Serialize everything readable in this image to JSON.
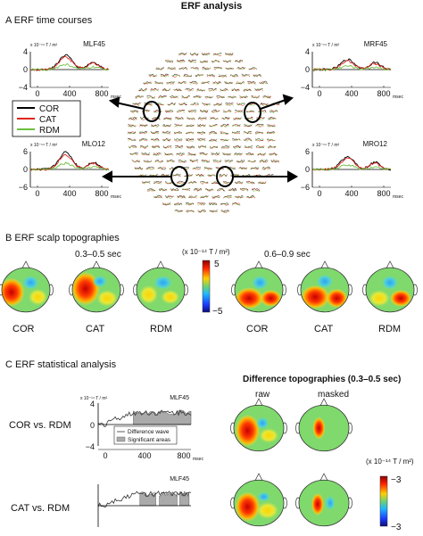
{
  "figure": {
    "title": "ERF analysis",
    "panels": {
      "A": {
        "label": "A ERF time courses",
        "unit": "x 10⁻¹⁴ T / m²",
        "xunit": "msec",
        "channels": {
          "MLF45": {
            "name": "MLF45",
            "yticks": [
              "4",
              "0",
              "−4"
            ],
            "xticks": [
              "0",
              "400",
              "800"
            ]
          },
          "MRF45": {
            "name": "MRF45",
            "yticks": [
              "4",
              "0",
              "−4"
            ],
            "xticks": [
              "0",
              "400",
              "800"
            ]
          },
          "MLO12": {
            "name": "MLO12",
            "yticks": [
              "6",
              "0",
              "−6"
            ],
            "xticks": [
              "0",
              "400",
              "800"
            ]
          },
          "MRO12": {
            "name": "MRO12",
            "yticks": [
              "6",
              "0",
              "−6"
            ],
            "xticks": [
              "0",
              "400",
              "800"
            ]
          }
        },
        "legend": [
          {
            "label": "COR",
            "color": "#000000"
          },
          {
            "label": "CAT",
            "color": "#e0241c"
          },
          {
            "label": "RDM",
            "color": "#6fbf3f"
          }
        ]
      },
      "B": {
        "label": "B ERF scalp topographies",
        "window1": "0.3–0.5 sec",
        "window2": "0.6–0.9 sec",
        "colorbar_unit": "(x 10⁻¹⁴ T / m²)",
        "colorbar_max": "5",
        "colorbar_min": "−5",
        "conditions": [
          "COR",
          "CAT",
          "RDM",
          "COR",
          "CAT",
          "RDM"
        ]
      },
      "C": {
        "label": "C ERF statistical analysis",
        "row1_label": "COR vs. RDM",
        "row2_label": "CAT vs. RDM",
        "plot_unit": "x 10⁻¹⁴ T / m²",
        "channel": "MLF45",
        "yticks": [
          "4",
          "0",
          "−4"
        ],
        "xticks": [
          "0",
          "400",
          "800"
        ],
        "xunit": "msec",
        "legend": [
          "Difference wave",
          "Significant areas"
        ],
        "diff_title": "Difference topographies (0.3–0.5 sec)",
        "raw": "raw",
        "masked": "masked",
        "colorbar_unit": "(x 10⁻¹⁴ T / m²)",
        "colorbar_max": "−3",
        "colorbar_min": "−3"
      }
    }
  }
}
